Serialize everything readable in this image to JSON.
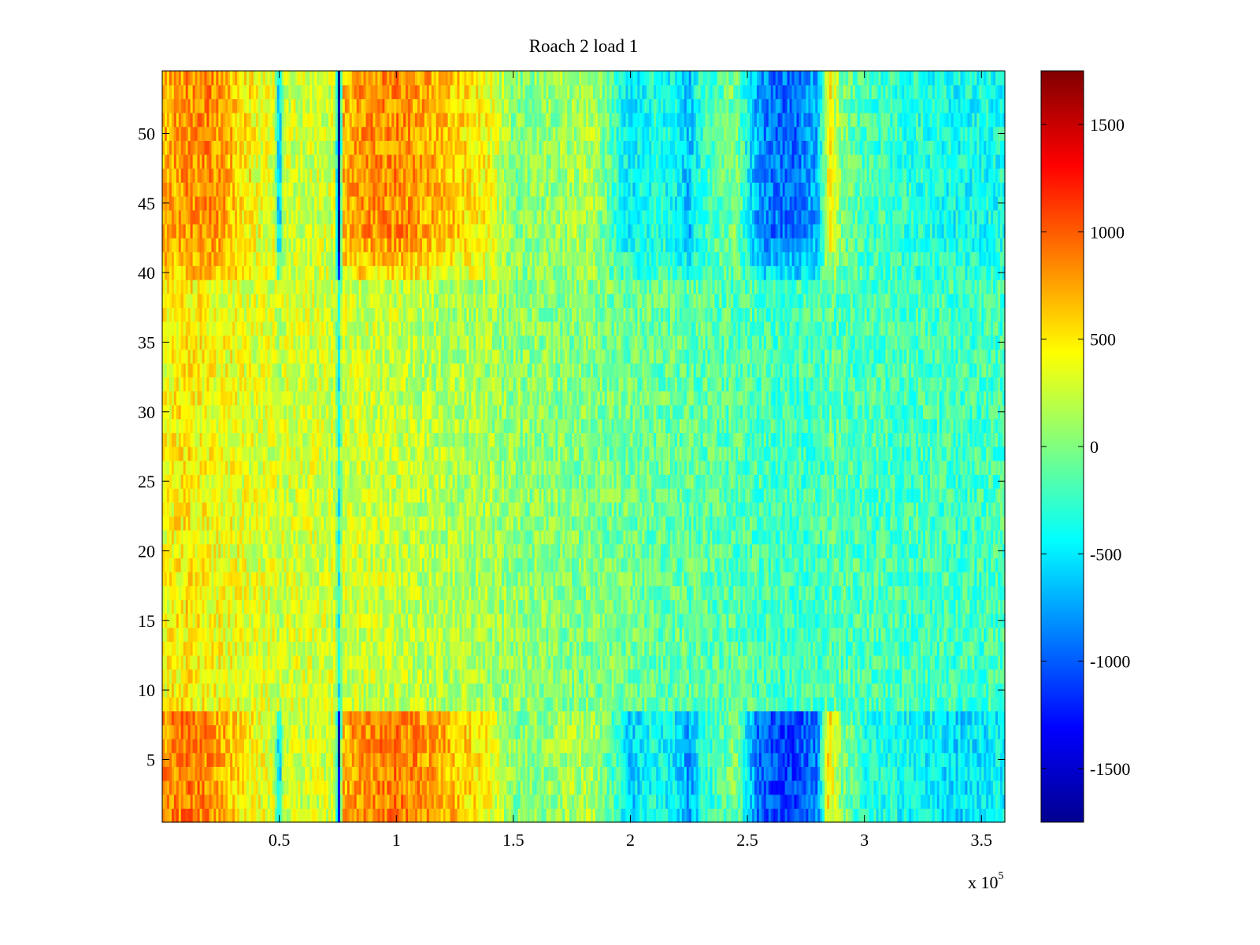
{
  "chart_data": {
    "type": "heatmap",
    "title": "Roach 2 load 1",
    "xlabel": "",
    "ylabel": "",
    "x_multiplier_label": "x 10",
    "x_multiplier_exponent": "5",
    "xlim": [
      0,
      3.6
    ],
    "ylim": [
      0.5,
      54.5
    ],
    "x_ticks": [
      0.5,
      1,
      1.5,
      2,
      2.5,
      3,
      3.5
    ],
    "x_tick_labels": [
      "0.5",
      "1",
      "1.5",
      "2",
      "2.5",
      "3",
      "3.5"
    ],
    "y_ticks": [
      5,
      10,
      15,
      20,
      25,
      30,
      35,
      40,
      45,
      50
    ],
    "y_tick_labels": [
      "5",
      "10",
      "15",
      "20",
      "25",
      "30",
      "35",
      "40",
      "45",
      "50"
    ],
    "rows": 54,
    "colorbar": {
      "colormap": "jet",
      "range": [
        -1750,
        1750
      ],
      "ticks": [
        -1500,
        -1000,
        -500,
        0,
        500,
        1000,
        1500
      ],
      "tick_labels": [
        "-1500",
        "-1000",
        "-500",
        "0",
        "500",
        "1000",
        "1500"
      ]
    },
    "value_profile_x": [
      0,
      0.1,
      0.2,
      0.3,
      0.4,
      0.48,
      0.5,
      0.52,
      0.6,
      0.74,
      0.755,
      0.77,
      0.85,
      1.0,
      1.1,
      1.25,
      1.4,
      1.5,
      1.7,
      1.85,
      1.95,
      2.0,
      2.1,
      2.2,
      2.25,
      2.3,
      2.45,
      2.55,
      2.6,
      2.7,
      2.8,
      2.85,
      2.87,
      2.9,
      3.0,
      3.2,
      3.4,
      3.6
    ],
    "value_profile_top": [
      700,
      800,
      850,
      650,
      400,
      300,
      -800,
      300,
      250,
      300,
      -1700,
      700,
      800,
      850,
      750,
      600,
      400,
      0,
      100,
      150,
      -300,
      -500,
      -300,
      -450,
      -650,
      -300,
      0,
      -800,
      -900,
      -950,
      -700,
      500,
      300,
      0,
      -200,
      -300,
      -400,
      -350
    ],
    "value_profile_mid": [
      400,
      500,
      420,
      380,
      320,
      300,
      200,
      300,
      290,
      280,
      -400,
      280,
      260,
      240,
      200,
      160,
      120,
      60,
      20,
      0,
      -40,
      -60,
      -80,
      -100,
      -110,
      -120,
      -140,
      -180,
      -200,
      -220,
      -210,
      -150,
      -140,
      -160,
      -180,
      -200,
      -220,
      -200
    ],
    "value_profile_bottom": [
      800,
      900,
      850,
      600,
      400,
      300,
      -700,
      300,
      250,
      300,
      -1500,
      700,
      800,
      900,
      800,
      650,
      400,
      0,
      100,
      150,
      -300,
      -600,
      -350,
      -500,
      -800,
      -350,
      0,
      -950,
      -1050,
      -1100,
      -850,
      600,
      300,
      0,
      -300,
      -400,
      -550,
      -450
    ],
    "band_top_rows": [
      40,
      54
    ],
    "band_bottom_rows": [
      1,
      8
    ]
  }
}
